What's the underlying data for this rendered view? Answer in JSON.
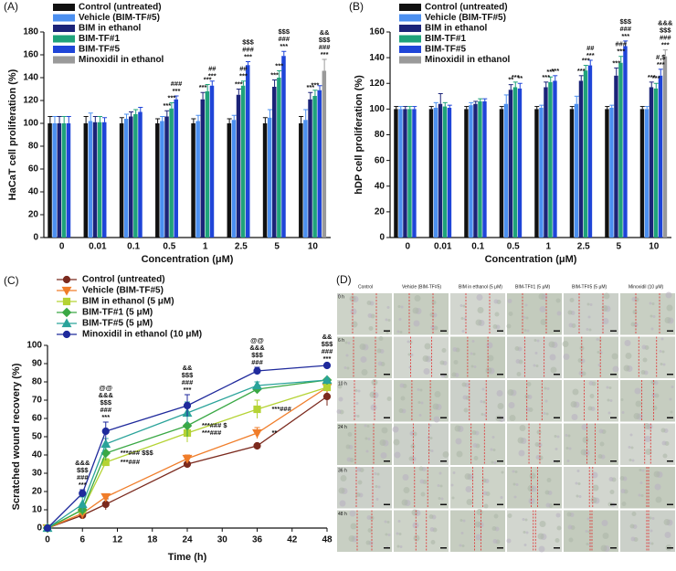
{
  "chart_data": [
    {
      "type": "bar",
      "panel_label": "(A)",
      "y_label": "HaCaT cell proliferation (%)",
      "x_label": "Concentration (μM)",
      "categories": [
        "0",
        "0.01",
        "0.1",
        "0.5",
        "1",
        "2.5",
        "5",
        "10"
      ],
      "ylim": [
        0,
        180
      ],
      "yticks": [
        0,
        20,
        40,
        60,
        80,
        100,
        120,
        140,
        160,
        180
      ],
      "legend": "upper left",
      "series": [
        {
          "name": "Control (untreated)",
          "color": "#111111",
          "values": [
            100,
            100,
            100,
            100,
            100,
            100,
            100,
            100
          ],
          "errors": [
            6,
            6,
            5,
            4,
            4,
            4,
            5,
            6
          ]
        },
        {
          "name": "Vehicle (BIM-TF#5)",
          "color": "#4b8ff0",
          "values": [
            100,
            102,
            104,
            102,
            102,
            103,
            105,
            103
          ],
          "errors": [
            6,
            7,
            4,
            4,
            5,
            4,
            7,
            9
          ]
        },
        {
          "name": "BIM in ethanol",
          "color": "#1b2378",
          "values": [
            100,
            101,
            106,
            106,
            121,
            125,
            132,
            121
          ],
          "errors": [
            6,
            5,
            4,
            5,
            6,
            5,
            6,
            6
          ]
        },
        {
          "name": "BIM-TF#1",
          "color": "#1fa37a",
          "values": [
            100,
            101,
            108,
            113,
            128,
            133,
            140,
            124
          ],
          "errors": [
            6,
            5,
            4,
            5,
            6,
            4,
            6,
            5
          ]
        },
        {
          "name": "BIM-TF#5",
          "color": "#1f45d8",
          "values": [
            100,
            101,
            110,
            121,
            133,
            151,
            159,
            129
          ],
          "errors": [
            6,
            4,
            4,
            3,
            4,
            3,
            4,
            4
          ]
        },
        {
          "name": "Minoxidil in ethanol",
          "color": "#9a9a9a",
          "values": [
            null,
            null,
            null,
            null,
            null,
            null,
            null,
            146
          ],
          "errors": [
            null,
            null,
            null,
            null,
            null,
            null,
            null,
            10
          ]
        }
      ],
      "annotations": [
        {
          "category": "0.5",
          "series": "BIM in ethanol",
          "text": [
            "***"
          ]
        },
        {
          "category": "0.5",
          "series": "BIM-TF#1",
          "text": [
            "***"
          ]
        },
        {
          "category": "0.5",
          "series": "BIM-TF#5",
          "text": [
            "###",
            "***"
          ]
        },
        {
          "category": "1",
          "series": "BIM in ethanol",
          "text": [
            "***"
          ]
        },
        {
          "category": "1",
          "series": "BIM-TF#1",
          "text": [
            "***"
          ]
        },
        {
          "category": "1",
          "series": "BIM-TF#5",
          "text": [
            "##",
            "***"
          ]
        },
        {
          "category": "2.5",
          "series": "BIM in ethanol",
          "text": [
            "***"
          ]
        },
        {
          "category": "2.5",
          "series": "BIM-TF#1",
          "text": [
            "##",
            "***"
          ]
        },
        {
          "category": "2.5",
          "series": "BIM-TF#5",
          "text": [
            "$$$",
            "###",
            "***"
          ]
        },
        {
          "category": "5",
          "series": "BIM in ethanol",
          "text": [
            "***"
          ]
        },
        {
          "category": "5",
          "series": "BIM-TF#1",
          "text": [
            "***"
          ]
        },
        {
          "category": "5",
          "series": "BIM-TF#5",
          "text": [
            "$$$",
            "###",
            "***"
          ]
        },
        {
          "category": "10",
          "series": "BIM in ethanol",
          "text": [
            "***"
          ]
        },
        {
          "category": "10",
          "series": "BIM-TF#1",
          "text": [
            "***"
          ]
        },
        {
          "category": "10",
          "series": "Minoxidil in ethanol",
          "text": [
            "&&",
            "$$$",
            "###",
            "***"
          ]
        }
      ]
    },
    {
      "type": "bar",
      "panel_label": "(B)",
      "y_label": "hDP cell proliferation (%)",
      "x_label": "Concentration (μM)",
      "categories": [
        "0",
        "0.01",
        "0.1",
        "0.5",
        "1",
        "2.5",
        "5",
        "10"
      ],
      "ylim": [
        0,
        160
      ],
      "yticks": [
        0,
        20,
        40,
        60,
        80,
        100,
        120,
        140,
        160
      ],
      "legend": "upper left",
      "series": [
        {
          "name": "Control (untreated)",
          "color": "#111111",
          "values": [
            100,
            100,
            100,
            100,
            100,
            100,
            100,
            100
          ],
          "errors": [
            2,
            2,
            2,
            2,
            2,
            2,
            2,
            2
          ]
        },
        {
          "name": "Vehicle (BIM-TF#5)",
          "color": "#4b8ff0",
          "values": [
            100,
            101,
            103,
            104,
            101,
            104,
            101,
            100
          ],
          "errors": [
            2,
            4,
            2,
            7,
            2,
            6,
            2,
            2
          ]
        },
        {
          "name": "BIM in ethanol",
          "color": "#1b2378",
          "values": [
            100,
            104,
            104,
            115,
            117,
            122,
            126,
            117
          ],
          "errors": [
            2,
            8,
            2,
            4,
            4,
            4,
            6,
            4
          ]
        },
        {
          "name": "BIM-TF#1",
          "color": "#1fa37a",
          "values": [
            100,
            102,
            106,
            117,
            121,
            130,
            136,
            116
          ],
          "errors": [
            2,
            3,
            2,
            4,
            4,
            4,
            5,
            4
          ]
        },
        {
          "name": "BIM-TF#5",
          "color": "#1f45d8",
          "values": [
            100,
            101,
            106,
            116,
            122,
            134,
            149,
            126
          ],
          "errors": [
            2,
            2,
            2,
            4,
            4,
            4,
            4,
            5
          ]
        },
        {
          "name": "Minoxidil in ethanol",
          "color": "#9a9a9a",
          "values": [
            null,
            null,
            null,
            null,
            null,
            null,
            null,
            141
          ],
          "errors": [
            null,
            null,
            null,
            null,
            null,
            null,
            null,
            5
          ]
        }
      ],
      "annotations": [
        {
          "category": "0.5",
          "series": "BIM in ethanol",
          "text": [
            "**"
          ]
        },
        {
          "category": "0.5",
          "series": "BIM-TF#1",
          "text": [
            "***"
          ]
        },
        {
          "category": "0.5",
          "series": "BIM-TF#5",
          "text": [
            "**"
          ]
        },
        {
          "category": "1",
          "series": "BIM in ethanol",
          "text": [
            "***"
          ]
        },
        {
          "category": "1",
          "series": "BIM-TF#1",
          "text": [
            "***"
          ]
        },
        {
          "category": "1",
          "series": "BIM-TF#5",
          "text": [
            "***"
          ]
        },
        {
          "category": "2.5",
          "series": "BIM in ethanol",
          "text": [
            "***"
          ]
        },
        {
          "category": "2.5",
          "series": "BIM-TF#1",
          "text": [
            "***"
          ]
        },
        {
          "category": "2.5",
          "series": "BIM-TF#5",
          "text": [
            "##",
            "***"
          ]
        },
        {
          "category": "5",
          "series": "BIM in ethanol",
          "text": [
            "***"
          ]
        },
        {
          "category": "5",
          "series": "BIM-TF#1",
          "text": [
            "###",
            "***"
          ]
        },
        {
          "category": "5",
          "series": "BIM-TF#5",
          "text": [
            "$$$",
            "###",
            "***"
          ]
        },
        {
          "category": "10",
          "series": "BIM in ethanol",
          "text": [
            "***"
          ]
        },
        {
          "category": "10",
          "series": "BIM-TF#1",
          "text": [
            "***"
          ]
        },
        {
          "category": "10",
          "series": "BIM-TF#5",
          "text": [
            "#,$",
            "***"
          ]
        },
        {
          "category": "10",
          "series": "Minoxidil in ethanol",
          "text": [
            "&&&",
            "$$$",
            "###",
            "***"
          ]
        }
      ]
    },
    {
      "type": "line",
      "panel_label": "(C)",
      "y_label": "Scratched wound recovery (%)",
      "x_label": "Time (h)",
      "x": [
        0,
        6,
        10,
        24,
        36,
        48
      ],
      "xlim": [
        0,
        48
      ],
      "xticks": [
        0,
        6,
        12,
        18,
        24,
        30,
        36,
        42,
        48
      ],
      "ylim": [
        0,
        100
      ],
      "yticks": [
        0,
        10,
        20,
        30,
        40,
        50,
        60,
        70,
        80,
        90,
        100
      ],
      "legend": "upper left",
      "series": [
        {
          "name": "Control (untreated)",
          "color": "#7b2a1e",
          "marker": "o",
          "values": [
            0,
            7,
            13,
            35,
            45,
            72
          ],
          "errors": [
            0,
            2,
            3,
            1,
            1,
            5
          ]
        },
        {
          "name": "Vehicle (BIM-TF#5)",
          "color": "#f07d2a",
          "marker": "v",
          "values": [
            0,
            8,
            17,
            38,
            52,
            77
          ],
          "errors": [
            0,
            3,
            1,
            2,
            3,
            2
          ]
        },
        {
          "name": "BIM in ethanol (5 μM)",
          "color": "#b5d334",
          "marker": "s",
          "values": [
            0,
            10,
            36,
            52,
            65,
            77
          ],
          "errors": [
            0,
            3,
            2,
            5,
            5,
            2
          ]
        },
        {
          "name": "BIM-TF#1 (5 μM)",
          "color": "#3aa845",
          "marker": "D",
          "values": [
            0,
            10,
            41,
            56,
            76,
            81
          ],
          "errors": [
            0,
            3,
            4,
            6,
            2,
            1
          ]
        },
        {
          "name": "BIM-TF#5 (5 μM)",
          "color": "#2aa39a",
          "marker": "^",
          "values": [
            0,
            13,
            46,
            63,
            78,
            81
          ],
          "errors": [
            0,
            4,
            3,
            6,
            2,
            1
          ]
        },
        {
          "name": "Minoxidil in ethanol (10 μM)",
          "color": "#1f2a9c",
          "marker": "o",
          "values": [
            0,
            19,
            53,
            67,
            86,
            89
          ],
          "errors": [
            0,
            2,
            5,
            6,
            2,
            1
          ]
        }
      ],
      "annotations": [
        {
          "x": 6,
          "series": "Minoxidil in ethanol (10 μM)",
          "text": [
            "&&&",
            "$$$",
            "###",
            "***"
          ]
        },
        {
          "x": 10,
          "series": "Minoxidil in ethanol (10 μM)",
          "text": [
            "@@",
            "&&&",
            "$$$",
            "###",
            "***"
          ]
        },
        {
          "x": 10,
          "series": "BIM-TF#1 (5 μM)",
          "text": [
            "***### $$$"
          ]
        },
        {
          "x": 10,
          "series": "BIM in ethanol (5 μM)",
          "text": [
            "***###"
          ]
        },
        {
          "x": 24,
          "series": "Minoxidil in ethanol (10 μM)",
          "text": [
            "&&",
            "$$$",
            "###",
            "***"
          ]
        },
        {
          "x": 24,
          "series": "BIM-TF#1 (5 μM)",
          "text": [
            "***### $"
          ]
        },
        {
          "x": 24,
          "series": "BIM in ethanol (5 μM)",
          "text": [
            "***###"
          ]
        },
        {
          "x": 36,
          "series": "Minoxidil in ethanol (10 μM)",
          "text": [
            "@@",
            "&&&",
            "$$$",
            "###"
          ]
        },
        {
          "x": 36,
          "series": "BIM in ethanol (5 μM)",
          "text": [
            "***###"
          ]
        },
        {
          "x": 36,
          "series": "Vehicle (BIM-TF#5)",
          "text": [
            "**"
          ]
        },
        {
          "x": 48,
          "series": "Minoxidil in ethanol (10 μM)",
          "text": [
            "&&",
            "$$$",
            "###",
            "***"
          ]
        },
        {
          "x": 48,
          "series": "BIM-TF#1 (5 μM)",
          "text": [
            "**"
          ]
        }
      ]
    }
  ],
  "panel_d": {
    "panel_label": "(D)",
    "columns": [
      "Control",
      "Vehicle (BIM-TF#5)",
      "BIM in ethanol (5 μM)",
      "BIM-TF#1 (5 μM)",
      "BIM-TF#5 (5 μM)",
      "Minoxidil (10 μM)"
    ],
    "rows": [
      "0 h",
      "6 h",
      "10 h",
      "24 h",
      "36 h",
      "48 h"
    ]
  }
}
